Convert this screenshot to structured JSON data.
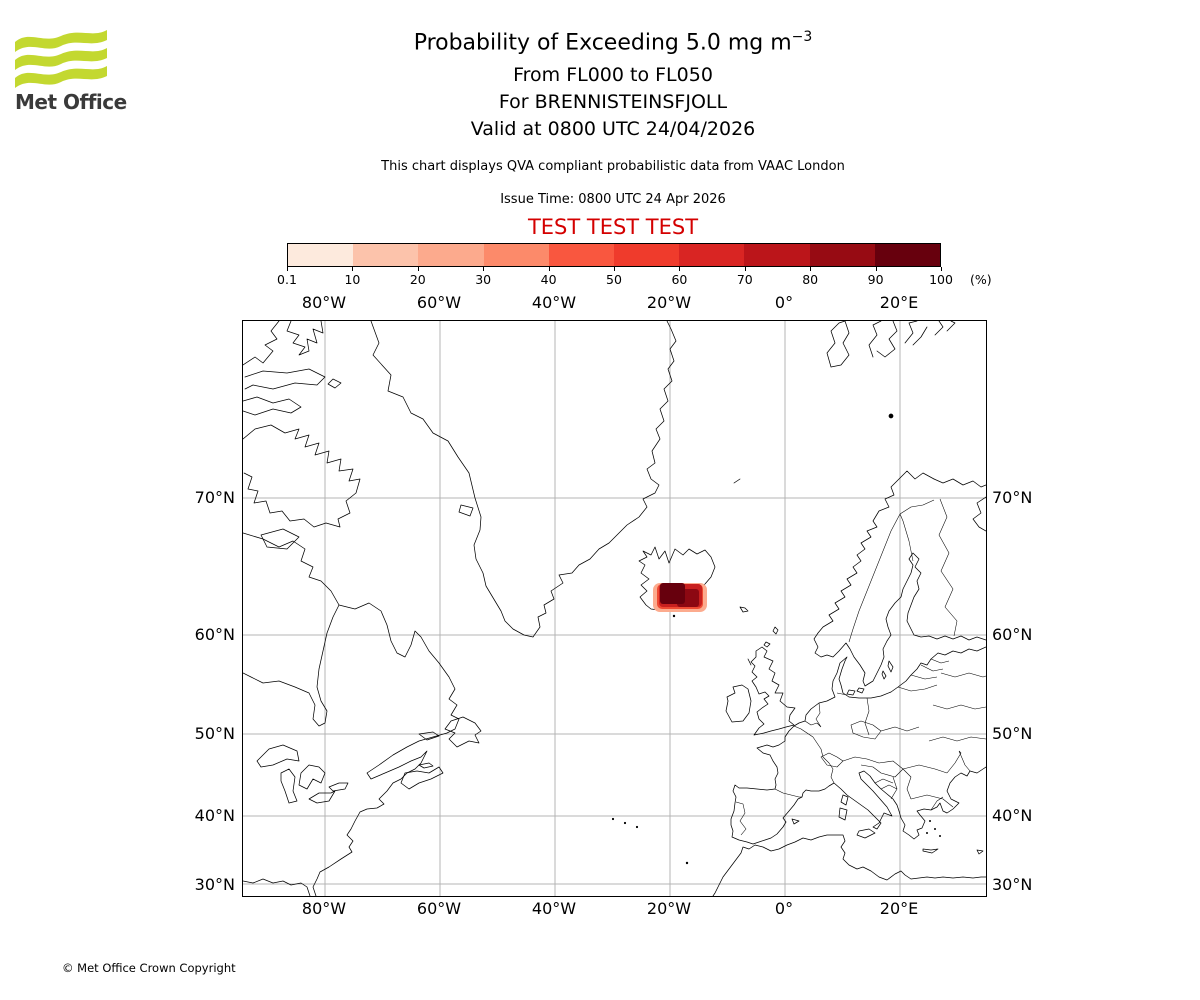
{
  "brand": {
    "name": "Met Office",
    "logo_green": "#c3d830",
    "text_color": "#3a3a3a"
  },
  "header": {
    "title_main": "Probability of Exceeding 5.0 mg m",
    "title_sup": "−3",
    "line_flight_levels": "From FL000 to FL050",
    "line_volcano": "For BRENNISTEINSFJOLL",
    "line_valid": "Valid at 0800 UTC 24/04/2026",
    "note": "This chart displays QVA compliant probabilistic data from VAAC London",
    "issue_time": "Issue Time: 0800 UTC 24 Apr 2026",
    "test_banner": "TEST TEST TEST",
    "test_color": "#d40000"
  },
  "colorbar": {
    "unit": "(%)",
    "ticks": [
      "0.1",
      "10",
      "20",
      "30",
      "40",
      "50",
      "60",
      "70",
      "80",
      "90",
      "100"
    ],
    "colors": [
      "#fdeadd",
      "#fcc3ab",
      "#fcaa8d",
      "#fc8a6a",
      "#f9573f",
      "#ef3b2c",
      "#d92523",
      "#bb151a",
      "#970b13",
      "#67000d"
    ]
  },
  "map": {
    "top_labels": [
      "80°W",
      "60°W",
      "40°W",
      "20°W",
      "0°",
      "20°E"
    ],
    "bottom_labels": [
      "80°W",
      "60°W",
      "40°W",
      "20°W",
      "0°",
      "20°E"
    ],
    "left_labels": [
      "70°N",
      "60°N",
      "50°N",
      "40°N",
      "30°N"
    ],
    "right_labels": [
      "70°N",
      "60°N",
      "50°N",
      "40°N",
      "30°N"
    ],
    "hazard_colors": {
      "outer": "#fcab8e",
      "mid": "#c8201f",
      "core": "#67000d"
    }
  },
  "footer": {
    "copyright": "© Met Office Crown Copyright"
  }
}
